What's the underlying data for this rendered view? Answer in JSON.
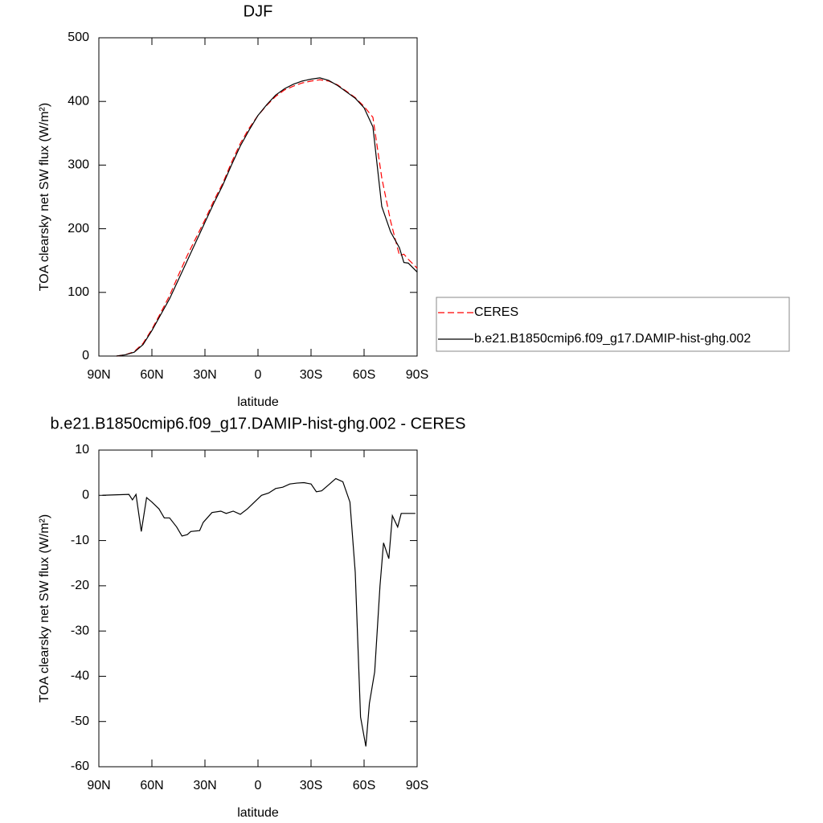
{
  "chart_data": [
    {
      "type": "line",
      "title": "DJF",
      "xlabel": "latitude",
      "ylabel": "TOA clearsky net SW flux (W/m²)",
      "x": [
        80,
        75,
        70,
        65,
        60,
        55,
        50,
        45,
        40,
        35,
        30,
        25,
        20,
        15,
        10,
        5,
        0,
        -5,
        -10,
        -15,
        -20,
        -25,
        -30,
        -35,
        -40,
        -45,
        -50,
        -55,
        -60,
        -65,
        -70,
        -75,
        -80,
        -82.5,
        -85,
        -90
      ],
      "series": [
        {
          "name": "CERES",
          "color": "#ff0000",
          "dashed": true,
          "values": [
            0,
            2,
            7,
            20,
            42,
            68,
            95,
            127,
            158,
            186,
            214,
            244,
            271,
            304,
            334,
            358,
            378,
            394,
            408,
            418,
            424,
            429,
            432,
            434,
            432,
            426,
            416,
            406,
            392,
            375,
            280,
            212,
            158,
            160,
            152,
            138
          ]
        },
        {
          "name": "b.e21.B1850cmip6.f09_g17.DAMIP-hist-ghg.002",
          "color": "#000000",
          "dashed": false,
          "values": [
            0,
            2,
            6,
            18,
            40,
            65,
            90,
            120,
            150,
            180,
            210,
            240,
            268,
            300,
            330,
            355,
            378,
            395,
            410,
            420,
            427,
            432,
            435,
            437,
            433,
            425,
            415,
            405,
            390,
            360,
            235,
            195,
            170,
            147,
            146,
            132
          ]
        }
      ],
      "xlim": [
        90,
        -90
      ],
      "xticks": [
        {
          "value": 90,
          "label": "90N"
        },
        {
          "value": 60,
          "label": "60N"
        },
        {
          "value": 30,
          "label": "30N"
        },
        0,
        {
          "value": -30,
          "label": "30S"
        },
        {
          "value": -60,
          "label": "60S"
        },
        {
          "value": -90,
          "label": "90S"
        }
      ],
      "ylim": [
        0,
        500
      ],
      "yticks": [
        0,
        100,
        200,
        300,
        400,
        500
      ],
      "legend": "right"
    },
    {
      "type": "line",
      "title": "b.e21.B1850cmip6.f09_g17.DAMIP-hist-ghg.002 - CERES",
      "xlabel": "latitude",
      "ylabel": "TOA clearsky net SW flux (W/m²)",
      "x": [
        88,
        73,
        71,
        69,
        66,
        63,
        60,
        56,
        53,
        50,
        46,
        43,
        40,
        38,
        33,
        31,
        26,
        21,
        18,
        14,
        10,
        6,
        2,
        -2,
        -6,
        -10,
        -14,
        -18,
        -22,
        -26,
        -30,
        -33,
        -36,
        -39,
        -44,
        -48,
        -52,
        -55,
        -58,
        -61,
        -63,
        -66,
        -69,
        -71,
        -74,
        -76,
        -79,
        -81,
        -84,
        -86,
        -89
      ],
      "series": [
        {
          "name": "b.e21.B1850cmip6.f09_g17.DAMIP-hist-ghg.002 - CERES",
          "color": "#000000",
          "dashed": false,
          "values": [
            0,
            0.2,
            -1,
            0.2,
            -8,
            -0.5,
            -1.5,
            -3,
            -5,
            -5,
            -7,
            -9,
            -8.7,
            -8,
            -7.8,
            -6,
            -3.8,
            -3.5,
            -4,
            -3.5,
            -4.2,
            -3,
            -1.5,
            0,
            0.5,
            1.5,
            1.8,
            2.5,
            2.7,
            2.8,
            2.5,
            0.8,
            1,
            2,
            3.7,
            3,
            -1.5,
            -17,
            -49,
            -55.5,
            -46,
            -39,
            -20,
            -10.5,
            -14,
            -4.5,
            -7,
            -4,
            -4,
            -4,
            -4
          ]
        }
      ],
      "xlim": [
        90,
        -90
      ],
      "xticks": [
        {
          "value": 90,
          "label": "90N"
        },
        {
          "value": 60,
          "label": "60N"
        },
        {
          "value": 30,
          "label": "30N"
        },
        0,
        {
          "value": -30,
          "label": "30S"
        },
        {
          "value": -60,
          "label": "60S"
        },
        {
          "value": -90,
          "label": "90S"
        }
      ],
      "ylim": [
        -60,
        10
      ],
      "yticks": [
        10,
        0,
        -10,
        -20,
        -30,
        -40,
        -50,
        -60
      ]
    }
  ]
}
